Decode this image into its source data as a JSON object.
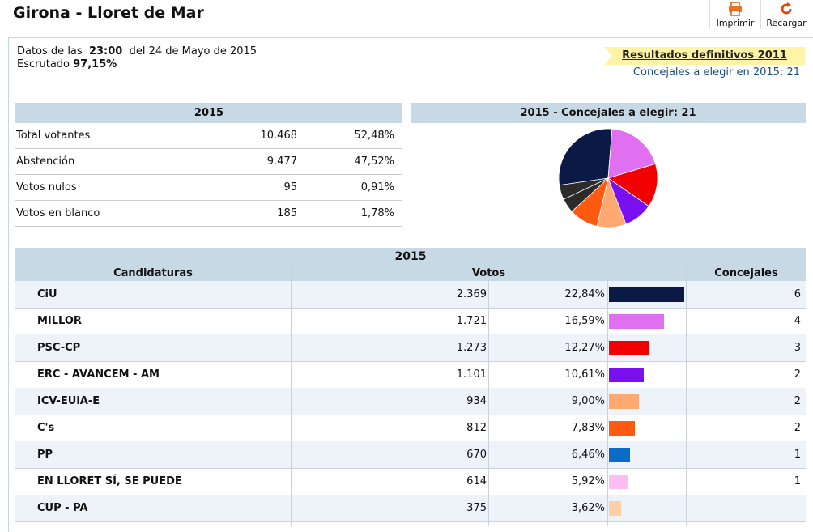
{
  "header": {
    "title": "Girona - Lloret de Mar",
    "print_label": "Imprimir",
    "reload_label": "Recargar"
  },
  "info": {
    "data_prefix": "Datos de las",
    "time": "23:00",
    "date_text": "del 24 de Mayo de 2015",
    "scrutiny_label": "Escrutado",
    "scrutiny_value": "97,15%"
  },
  "results_link": "Resultados definitivos 2011",
  "councillors_line": "Concejales a elegir en 2015: 21",
  "summary": {
    "year": "2015",
    "rows": [
      {
        "label": "Total votantes",
        "count": "10.468",
        "pct": "52,48%"
      },
      {
        "label": "Abstención",
        "count": "9.477",
        "pct": "47,52%"
      },
      {
        "label": "Votos nulos",
        "count": "95",
        "pct": "0,91%"
      },
      {
        "label": "Votos en blanco",
        "count": "185",
        "pct": "1,78%"
      }
    ]
  },
  "pie_title": "2015 - Concejales a elegir: 21",
  "pie": [
    {
      "party": "CiU",
      "seats": 6,
      "color": "#0a1a44"
    },
    {
      "party": "MILLOR",
      "seats": 4,
      "color": "#e070f0"
    },
    {
      "party": "PSC-CP",
      "seats": 3,
      "color": "#f00000"
    },
    {
      "party": "ERC - AVANCEM - AM",
      "seats": 2,
      "color": "#7a10f0"
    },
    {
      "party": "ICV-EUiA-E",
      "seats": 2,
      "color": "#ffa870"
    },
    {
      "party": "C's",
      "seats": 2,
      "color": "#ff5a10"
    },
    {
      "party": "PP",
      "seats": 1,
      "color": "#2b2b2b"
    },
    {
      "party": "EN LLORET SÍ, SE PUEDE",
      "seats": 1,
      "color": "#2b2b2b"
    }
  ],
  "parties_table": {
    "year": "2015",
    "col_candidaturas": "Candidaturas",
    "col_votos": "Votos",
    "col_concejales": "Concejales",
    "rows": [
      {
        "name": "CiU",
        "votes": "2.369",
        "pct": "22,84%",
        "pct_value": 22.84,
        "seats": "6",
        "color": "#0a1a44"
      },
      {
        "name": "MILLOR",
        "votes": "1.721",
        "pct": "16,59%",
        "pct_value": 16.59,
        "seats": "4",
        "color": "#e070f0"
      },
      {
        "name": "PSC-CP",
        "votes": "1.273",
        "pct": "12,27%",
        "pct_value": 12.27,
        "seats": "3",
        "color": "#f00000"
      },
      {
        "name": "ERC - AVANCEM - AM",
        "votes": "1.101",
        "pct": "10,61%",
        "pct_value": 10.61,
        "seats": "2",
        "color": "#7a10f0"
      },
      {
        "name": "ICV-EUiA-E",
        "votes": "934",
        "pct": "9,00%",
        "pct_value": 9.0,
        "seats": "2",
        "color": "#ffa870"
      },
      {
        "name": "C's",
        "votes": "812",
        "pct": "7,83%",
        "pct_value": 7.83,
        "seats": "2",
        "color": "#ff5a10"
      },
      {
        "name": "PP",
        "votes": "670",
        "pct": "6,46%",
        "pct_value": 6.46,
        "seats": "1",
        "color": "#0a6cc8"
      },
      {
        "name": "EN LLORET SÍ, SE PUEDE",
        "votes": "614",
        "pct": "5,92%",
        "pct_value": 5.92,
        "seats": "1",
        "color": "#ffbdf5"
      },
      {
        "name": "CUP - PA",
        "votes": "375",
        "pct": "3,62%",
        "pct_value": 3.62,
        "seats": "",
        "color": "#ffd0a8"
      }
    ]
  }
}
